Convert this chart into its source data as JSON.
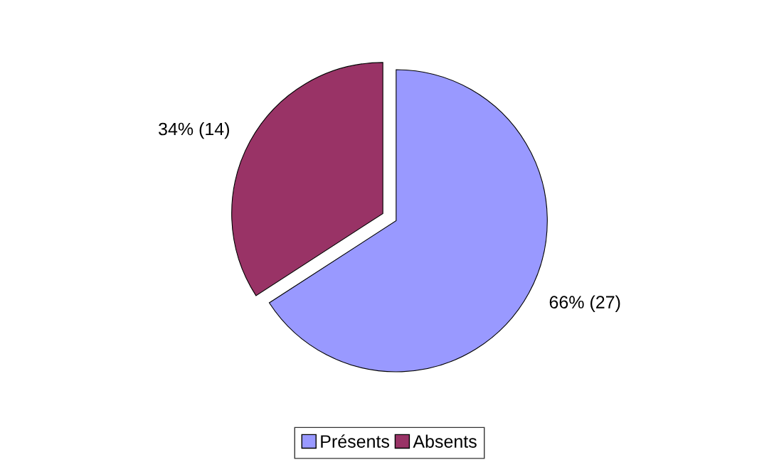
{
  "chart_data": {
    "type": "pie",
    "categories": [
      "Présents",
      "Absents"
    ],
    "values": [
      27,
      14
    ],
    "value_labels": [
      "66% (27)",
      "34% (14)"
    ],
    "colors": [
      "#9999ff",
      "#993366"
    ],
    "legend": "bottom"
  }
}
